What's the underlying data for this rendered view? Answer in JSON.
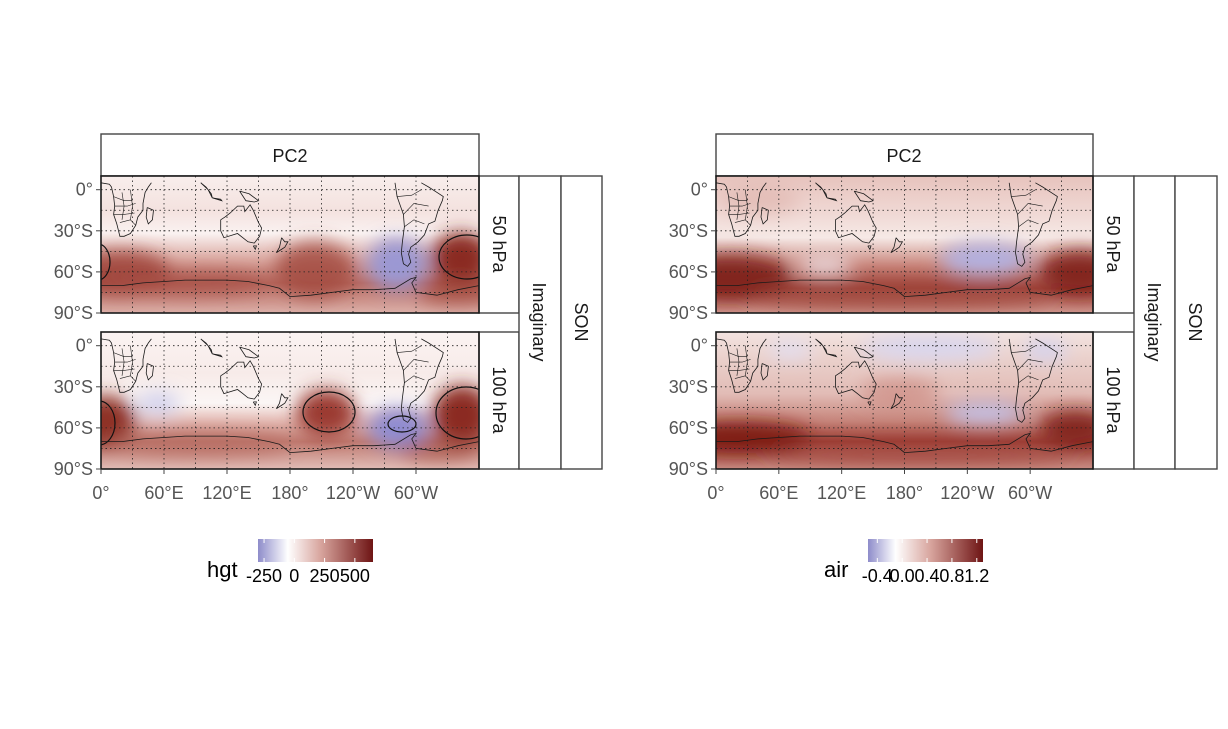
{
  "chart_data": [
    {
      "type": "heatmap",
      "variable": "hgt",
      "strip_top": "PC2",
      "strip_right_outer": "SON",
      "strip_right_middle": "Imaginary",
      "panels": [
        {
          "level": "50 hPa",
          "label": "50 hPa"
        },
        {
          "level": "100 hPa",
          "label": "100 hPa"
        }
      ],
      "x_ticks": [
        "0°",
        "60°E",
        "120°E",
        "180°",
        "120°W",
        "60°W"
      ],
      "x_tick_values": [
        0,
        60,
        120,
        180,
        240,
        300
      ],
      "y_ticks": [
        "0°",
        "30°S",
        "60°S",
        "90°S"
      ],
      "y_tick_values": [
        0,
        -30,
        -60,
        -90
      ],
      "xlim": [
        0,
        360
      ],
      "ylim": [
        -90,
        10
      ],
      "legend": {
        "title": "hgt",
        "tick_labels": [
          "-250",
          "0",
          "250",
          "500"
        ],
        "tick_values": [
          -250,
          0,
          250,
          500
        ],
        "range": [
          -300,
          650
        ],
        "position": "bottom"
      },
      "colors": {
        "low": "#8e8cca",
        "mid": "#ffffff",
        "high": "#6e1414"
      }
    },
    {
      "type": "heatmap",
      "variable": "air",
      "strip_top": "PC2",
      "strip_right_outer": "SON",
      "strip_right_middle": "Imaginary",
      "panels": [
        {
          "level": "50 hPa",
          "label": "50 hPa"
        },
        {
          "level": "100 hPa",
          "label": "100 hPa"
        }
      ],
      "x_ticks": [
        "0°",
        "60°E",
        "120°E",
        "180°",
        "120°W",
        "60°W"
      ],
      "x_tick_values": [
        0,
        60,
        120,
        180,
        240,
        300
      ],
      "y_ticks": [
        "0°",
        "30°S",
        "60°S",
        "90°S"
      ],
      "y_tick_values": [
        0,
        -30,
        -60,
        -90
      ],
      "xlim": [
        0,
        360
      ],
      "ylim": [
        -90,
        10
      ],
      "legend": {
        "title": "air",
        "tick_labels": [
          "-0.4",
          "0.0",
          "0.4",
          "0.8",
          "1.2"
        ],
        "tick_values": [
          -0.4,
          0.0,
          0.4,
          0.8,
          1.2
        ],
        "range": [
          -0.55,
          1.3
        ],
        "position": "bottom"
      },
      "colors": {
        "low": "#8e8cca",
        "mid": "#ffffff",
        "high": "#6e1414"
      }
    }
  ]
}
